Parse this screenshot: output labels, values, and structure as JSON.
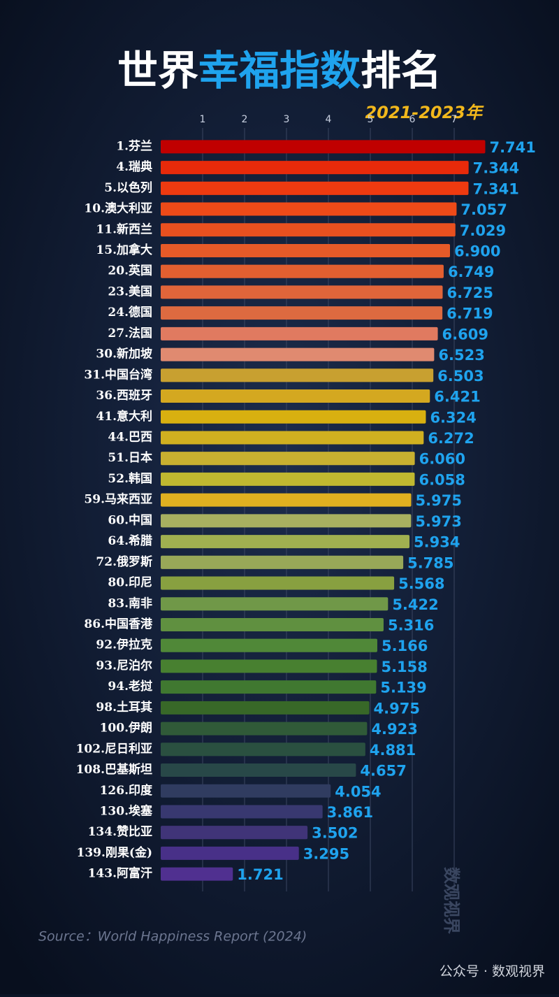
{
  "chart_data": {
    "type": "bar",
    "orientation": "horizontal",
    "title": [
      "世界",
      "幸福指数",
      "排名"
    ],
    "title_colors": [
      "#ffffff",
      "#1fa3ee",
      "#ffffff"
    ],
    "subtitle": "2021-2023年",
    "source": "Source：World Happiness Report (2024)",
    "watermark": "数观视界",
    "footer": "公众号 · 数观视界",
    "categories": [
      "1.芬兰",
      "4.瑞典",
      "5.以色列",
      "10.澳大利亚",
      "11.新西兰",
      "15.加拿大",
      "20.英国",
      "23.美国",
      "24.德国",
      "27.法国",
      "30.新加坡",
      "31.中国台湾",
      "36.西班牙",
      "41.意大利",
      "44.巴西",
      "51.日本",
      "52.韩国",
      "59.马来西亚",
      "60.中国",
      "64.希腊",
      "72.俄罗斯",
      "80.印尼",
      "83.南非",
      "86.中国香港",
      "92.伊拉克",
      "93.尼泊尔",
      "94.老挝",
      "98.土耳其",
      "100.伊朗",
      "102.尼日利亚",
      "108.巴基斯坦",
      "126.印度",
      "130.埃塞",
      "134.赞比亚",
      "139.刚果(金)",
      "143.阿富汗"
    ],
    "values": [
      7.741,
      7.344,
      7.341,
      7.057,
      7.029,
      6.9,
      6.749,
      6.725,
      6.719,
      6.609,
      6.523,
      6.503,
      6.421,
      6.324,
      6.272,
      6.06,
      6.058,
      5.975,
      5.973,
      5.934,
      5.785,
      5.568,
      5.422,
      5.316,
      5.166,
      5.158,
      5.139,
      4.975,
      4.923,
      4.881,
      4.657,
      4.054,
      3.861,
      3.502,
      3.295,
      1.721
    ],
    "value_labels": [
      "7.741",
      "7.344",
      "7.341",
      "7.057",
      "7.029",
      "6.900",
      "6.749",
      "6.725",
      "6.719",
      "6.609",
      "6.523",
      "6.503",
      "6.421",
      "6.324",
      "6.272",
      "6.060",
      "6.058",
      "5.975",
      "5.973",
      "5.934",
      "5.785",
      "5.568",
      "5.422",
      "5.316",
      "5.166",
      "5.158",
      "5.139",
      "4.975",
      "4.923",
      "4.881",
      "4.657",
      "4.054",
      "3.861",
      "3.502",
      "3.295",
      "1.721"
    ],
    "colors": [
      "#c00000",
      "#e82a0a",
      "#ee3a10",
      "#ee4a18",
      "#e9501f",
      "#e65a28",
      "#e25f30",
      "#e0653a",
      "#dd6a40",
      "#e07a60",
      "#e08a70",
      "#c8a030",
      "#d4a820",
      "#d8b010",
      "#d0b020",
      "#c8b030",
      "#c0b830",
      "#e0b020",
      "#a8b060",
      "#a0b050",
      "#98a858",
      "#88a040",
      "#709848",
      "#609040",
      "#508838",
      "#488030",
      "#407830",
      "#386828",
      "#305a38",
      "#2a5040",
      "#284848",
      "#303c60",
      "#383870",
      "#403478",
      "#483088",
      "#503090"
    ],
    "xlim": [
      0,
      8
    ],
    "xticks": [
      1,
      2,
      3,
      4,
      5,
      6,
      7
    ],
    "grid": true
  }
}
